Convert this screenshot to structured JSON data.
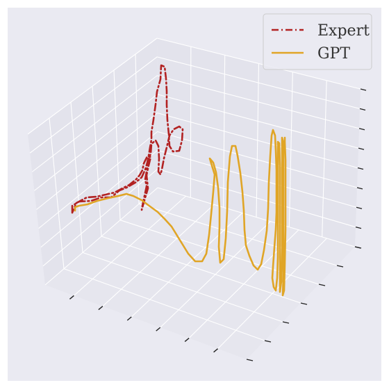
{
  "chart_data": {
    "type": "line",
    "projection": "3d",
    "title": "",
    "xlabel": "",
    "ylabel": "",
    "zlabel": "",
    "tick_labels_shown": false,
    "grid": true,
    "legend_placement": "top-right",
    "series": [
      {
        "name": "Expert",
        "color": "#b22222",
        "style": "dash-dot",
        "points": [
          [
            104,
            306
          ],
          [
            104,
            296
          ],
          [
            114,
            290
          ],
          [
            131,
            289
          ],
          [
            146,
            284
          ],
          [
            160,
            284
          ],
          [
            172,
            274
          ],
          [
            182,
            270
          ],
          [
            196,
            262
          ],
          [
            204,
            255
          ],
          [
            209,
            244
          ],
          [
            212,
            234
          ],
          [
            214,
            224
          ],
          [
            216,
            212
          ],
          [
            218,
            201
          ],
          [
            218,
            190
          ],
          [
            221,
            172
          ],
          [
            224,
            150
          ],
          [
            226,
            132
          ],
          [
            231,
            114
          ],
          [
            232,
            94
          ],
          [
            237,
            96
          ],
          [
            239,
            113
          ],
          [
            240,
            131
          ],
          [
            240,
            151
          ],
          [
            241,
            173
          ],
          [
            243,
            193
          ],
          [
            244,
            210
          ],
          [
            249,
            218
          ],
          [
            258,
            217
          ],
          [
            262,
            202
          ],
          [
            263,
            186
          ],
          [
            258,
            182
          ],
          [
            250,
            186
          ],
          [
            244,
            195
          ],
          [
            240,
            212
          ],
          [
            236,
            228
          ],
          [
            233,
            244
          ],
          [
            231,
            251
          ],
          [
            228,
            247
          ],
          [
            229,
            228
          ],
          [
            228,
            210
          ],
          [
            224,
            202
          ],
          [
            218,
            207
          ],
          [
            217,
            221
          ],
          [
            213,
            233
          ],
          [
            211,
            247
          ],
          [
            209,
            258
          ],
          [
            211,
            268
          ],
          [
            208,
            282
          ],
          [
            205,
            296
          ],
          [
            204,
            302
          ],
          [
            208,
            288
          ],
          [
            213,
            271
          ],
          [
            211,
            252
          ],
          [
            214,
            238
          ],
          [
            217,
            226
          ],
          [
            212,
            225
          ],
          [
            207,
            235
          ],
          [
            205,
            245
          ],
          [
            201,
            252
          ],
          [
            196,
            258
          ],
          [
            186,
            266
          ],
          [
            176,
            271
          ],
          [
            165,
            277
          ],
          [
            152,
            280
          ],
          [
            139,
            283
          ],
          [
            125,
            284
          ],
          [
            110,
            292
          ],
          [
            104,
            306
          ]
        ]
      },
      {
        "name": "GPT",
        "color": "#e0a526",
        "style": "solid",
        "points": [
          [
            108,
            303
          ],
          [
            108,
            298
          ],
          [
            114,
            296
          ],
          [
            126,
            294
          ],
          [
            140,
            289
          ],
          [
            156,
            285
          ],
          [
            170,
            282
          ],
          [
            182,
            279
          ],
          [
            192,
            282
          ],
          [
            204,
            288
          ],
          [
            216,
            297
          ],
          [
            227,
            305
          ],
          [
            237,
            315
          ],
          [
            247,
            326
          ],
          [
            255,
            339
          ],
          [
            263,
            352
          ],
          [
            271,
            365
          ],
          [
            281,
            376
          ],
          [
            291,
            376
          ],
          [
            297,
            365
          ],
          [
            301,
            338
          ],
          [
            304,
            308
          ],
          [
            307,
            276
          ],
          [
            309,
            251
          ],
          [
            304,
            235
          ],
          [
            302,
            228
          ],
          [
            307,
            234
          ],
          [
            311,
            248
          ],
          [
            314,
            270
          ],
          [
            316,
            299
          ],
          [
            316,
            325
          ],
          [
            315,
            355
          ],
          [
            317,
            378
          ],
          [
            322,
            373
          ],
          [
            325,
            343
          ],
          [
            327,
            304
          ],
          [
            328,
            262
          ],
          [
            331,
            225
          ],
          [
            334,
            210
          ],
          [
            339,
            210
          ],
          [
            342,
            224
          ],
          [
            346,
            249
          ],
          [
            349,
            276
          ],
          [
            351,
            303
          ],
          [
            352,
            331
          ],
          [
            354,
            353
          ],
          [
            359,
            368
          ],
          [
            365,
            382
          ],
          [
            371,
            388
          ],
          [
            376,
            380
          ],
          [
            380,
            360
          ],
          [
            384,
            332
          ],
          [
            386,
            300
          ],
          [
            387,
            262
          ],
          [
            389,
            225
          ],
          [
            391,
            195
          ],
          [
            393,
            187
          ],
          [
            396,
            195
          ],
          [
            397,
            217
          ],
          [
            398,
            245
          ],
          [
            398,
            275
          ],
          [
            398,
            305
          ],
          [
            397,
            330
          ],
          [
            395,
            356
          ],
          [
            393,
            384
          ],
          [
            392,
            400
          ],
          [
            394,
            413
          ],
          [
            397,
            418
          ],
          [
            399,
            400
          ],
          [
            400,
            370
          ],
          [
            400,
            335
          ],
          [
            400,
            300
          ],
          [
            400,
            265
          ],
          [
            400,
            230
          ],
          [
            400,
            204
          ],
          [
            402,
            206
          ],
          [
            403,
            240
          ],
          [
            403,
            280
          ],
          [
            403,
            320
          ],
          [
            403,
            360
          ],
          [
            403,
            398
          ],
          [
            403,
            420
          ],
          [
            405,
            405
          ],
          [
            406,
            360
          ],
          [
            406,
            310
          ],
          [
            406,
            260
          ],
          [
            406,
            215
          ],
          [
            406,
            198
          ],
          [
            408,
            205
          ],
          [
            408,
            250
          ],
          [
            408,
            300
          ],
          [
            408,
            350
          ],
          [
            408,
            395
          ],
          [
            407,
            425
          ],
          [
            409,
            418
          ],
          [
            410,
            380
          ],
          [
            411,
            330
          ],
          [
            411,
            280
          ],
          [
            411,
            230
          ],
          [
            410,
            204
          ],
          [
            410,
            198
          ]
        ]
      }
    ]
  }
}
